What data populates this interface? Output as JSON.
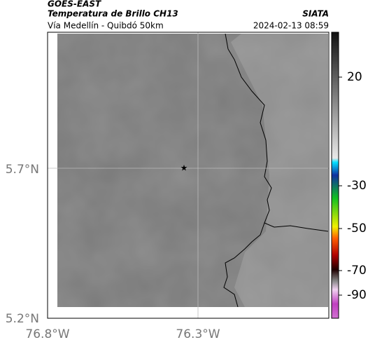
{
  "header": {
    "source": "GOES-EAST",
    "title": "Temperatura de Brillo CH13",
    "agency": "SIATA",
    "subtitle": "Vía Medellín - Quibdó 50km",
    "timestamp": "2024-02-13 08:59"
  },
  "axes": {
    "y_labels": [
      "5.7°N",
      "5.2°N"
    ],
    "x_labels": [
      "76.8°W",
      "76.3°W"
    ]
  },
  "colorbar": {
    "labels": [
      20,
      -30,
      -50,
      -70,
      -90
    ]
  }
}
